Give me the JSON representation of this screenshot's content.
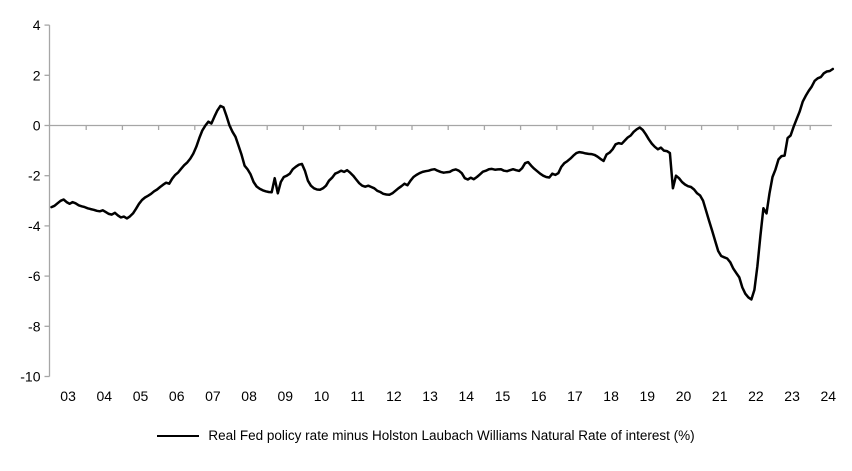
{
  "chart_data": {
    "type": "line",
    "title": "",
    "xlabel": "",
    "ylabel": "",
    "ylim": [
      -10,
      4
    ],
    "grid": false,
    "legend_position": "bottom-center",
    "axis_color": "#a6a6a6",
    "line_color": "#000000",
    "text_color": "#000000",
    "y_ticks": [
      4,
      2,
      0,
      -2,
      -4,
      -6,
      -8,
      -10
    ],
    "x_tick_labels": [
      "03",
      "04",
      "05",
      "06",
      "07",
      "08",
      "09",
      "10",
      "11",
      "12",
      "13",
      "14",
      "15",
      "16",
      "17",
      "18",
      "19",
      "20",
      "21",
      "22",
      "23",
      "24"
    ],
    "x_start_year": 2003,
    "points_per_year": 12,
    "series": [
      {
        "name": "Real Fed policy rate minus Holston Laubach Williams Natural Rate of interest (%)",
        "color": "#000000",
        "values": [
          -3.25,
          -3.2,
          -3.1,
          -3.0,
          -2.95,
          -3.05,
          -3.12,
          -3.05,
          -3.1,
          -3.18,
          -3.22,
          -3.25,
          -3.3,
          -3.33,
          -3.36,
          -3.4,
          -3.42,
          -3.38,
          -3.45,
          -3.52,
          -3.55,
          -3.48,
          -3.58,
          -3.66,
          -3.63,
          -3.7,
          -3.62,
          -3.5,
          -3.32,
          -3.12,
          -2.97,
          -2.87,
          -2.8,
          -2.72,
          -2.62,
          -2.55,
          -2.45,
          -2.36,
          -2.28,
          -2.32,
          -2.12,
          -1.97,
          -1.87,
          -1.72,
          -1.58,
          -1.47,
          -1.32,
          -1.12,
          -0.85,
          -0.5,
          -0.2,
          0.0,
          0.15,
          0.08,
          0.35,
          0.6,
          0.78,
          0.72,
          0.38,
          0.0,
          -0.25,
          -0.45,
          -0.8,
          -1.17,
          -1.6,
          -1.75,
          -1.95,
          -2.25,
          -2.43,
          -2.52,
          -2.58,
          -2.62,
          -2.65,
          -2.66,
          -2.1,
          -2.7,
          -2.25,
          -2.05,
          -2.0,
          -1.92,
          -1.74,
          -1.64,
          -1.56,
          -1.53,
          -1.8,
          -2.2,
          -2.4,
          -2.5,
          -2.55,
          -2.56,
          -2.5,
          -2.4,
          -2.2,
          -2.08,
          -1.92,
          -1.87,
          -1.8,
          -1.85,
          -1.78,
          -1.88,
          -2.0,
          -2.15,
          -2.3,
          -2.4,
          -2.44,
          -2.4,
          -2.45,
          -2.5,
          -2.6,
          -2.65,
          -2.72,
          -2.75,
          -2.76,
          -2.7,
          -2.6,
          -2.5,
          -2.42,
          -2.32,
          -2.38,
          -2.2,
          -2.05,
          -1.97,
          -1.9,
          -1.85,
          -1.82,
          -1.8,
          -1.76,
          -1.74,
          -1.8,
          -1.85,
          -1.88,
          -1.86,
          -1.85,
          -1.78,
          -1.75,
          -1.8,
          -1.9,
          -2.1,
          -2.15,
          -2.08,
          -2.14,
          -2.05,
          -1.95,
          -1.84,
          -1.8,
          -1.74,
          -1.73,
          -1.76,
          -1.75,
          -1.74,
          -1.8,
          -1.82,
          -1.78,
          -1.74,
          -1.78,
          -1.81,
          -1.7,
          -1.5,
          -1.46,
          -1.6,
          -1.72,
          -1.82,
          -1.92,
          -2.0,
          -2.05,
          -2.07,
          -1.92,
          -1.97,
          -1.9,
          -1.65,
          -1.5,
          -1.42,
          -1.32,
          -1.2,
          -1.1,
          -1.06,
          -1.08,
          -1.11,
          -1.13,
          -1.14,
          -1.17,
          -1.24,
          -1.33,
          -1.41,
          -1.15,
          -1.08,
          -0.95,
          -0.75,
          -0.7,
          -0.73,
          -0.6,
          -0.48,
          -0.4,
          -0.25,
          -0.15,
          -0.08,
          -0.18,
          -0.35,
          -0.55,
          -0.72,
          -0.85,
          -0.95,
          -0.88,
          -1.0,
          -1.02,
          -1.1,
          -2.5,
          -2.0,
          -2.1,
          -2.25,
          -2.35,
          -2.42,
          -2.45,
          -2.55,
          -2.7,
          -2.79,
          -3.0,
          -3.4,
          -3.8,
          -4.2,
          -4.6,
          -5.0,
          -5.2,
          -5.25,
          -5.3,
          -5.45,
          -5.7,
          -5.88,
          -6.05,
          -6.45,
          -6.7,
          -6.85,
          -6.93,
          -6.55,
          -5.6,
          -4.4,
          -3.3,
          -3.5,
          -2.7,
          -2.05,
          -1.75,
          -1.35,
          -1.22,
          -1.2,
          -0.5,
          -0.4,
          -0.05,
          0.25,
          0.55,
          0.95,
          1.18,
          1.38,
          1.55,
          1.78,
          1.88,
          1.93,
          2.08,
          2.15,
          2.17,
          2.25
        ]
      }
    ]
  },
  "legend": {
    "label": "Real Fed policy rate minus Holston Laubach Williams Natural Rate of interest (%)"
  }
}
